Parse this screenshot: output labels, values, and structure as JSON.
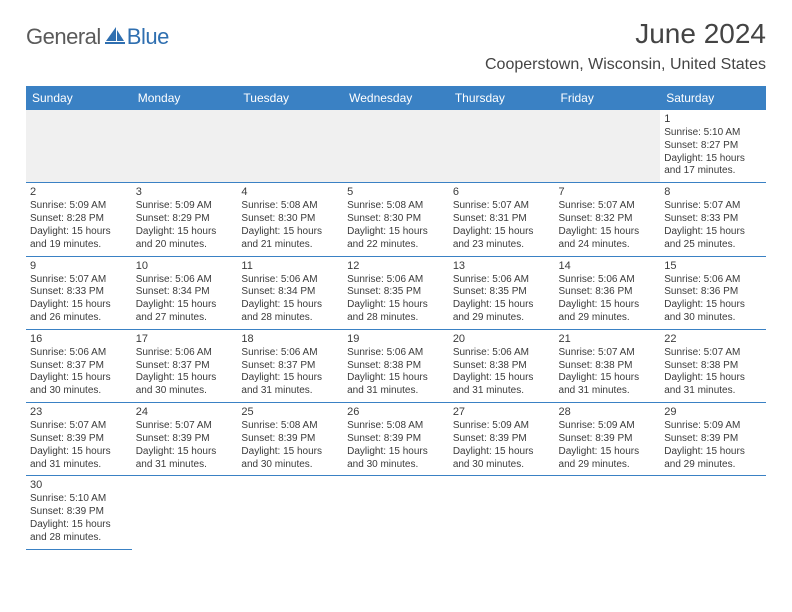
{
  "logo": {
    "text1": "General",
    "text2": "Blue",
    "sail_color": "#2f6fb0",
    "text1_color": "#5a5a5a"
  },
  "title": "June 2024",
  "location": "Cooperstown, Wisconsin, United States",
  "colors": {
    "header_bg": "#3a81c4",
    "header_fg": "#ffffff",
    "cell_border": "#3a81c4",
    "muted_bg": "#f0f0f0",
    "page_bg": "#ffffff",
    "text": "#3b3b3b"
  },
  "daynames": [
    "Sunday",
    "Monday",
    "Tuesday",
    "Wednesday",
    "Thursday",
    "Friday",
    "Saturday"
  ],
  "weeks": [
    [
      null,
      null,
      null,
      null,
      null,
      null,
      {
        "n": "1",
        "sr": "5:10 AM",
        "ss": "8:27 PM",
        "dl": "15 hours and 17 minutes."
      }
    ],
    [
      {
        "n": "2",
        "sr": "5:09 AM",
        "ss": "8:28 PM",
        "dl": "15 hours and 19 minutes."
      },
      {
        "n": "3",
        "sr": "5:09 AM",
        "ss": "8:29 PM",
        "dl": "15 hours and 20 minutes."
      },
      {
        "n": "4",
        "sr": "5:08 AM",
        "ss": "8:30 PM",
        "dl": "15 hours and 21 minutes."
      },
      {
        "n": "5",
        "sr": "5:08 AM",
        "ss": "8:30 PM",
        "dl": "15 hours and 22 minutes."
      },
      {
        "n": "6",
        "sr": "5:07 AM",
        "ss": "8:31 PM",
        "dl": "15 hours and 23 minutes."
      },
      {
        "n": "7",
        "sr": "5:07 AM",
        "ss": "8:32 PM",
        "dl": "15 hours and 24 minutes."
      },
      {
        "n": "8",
        "sr": "5:07 AM",
        "ss": "8:33 PM",
        "dl": "15 hours and 25 minutes."
      }
    ],
    [
      {
        "n": "9",
        "sr": "5:07 AM",
        "ss": "8:33 PM",
        "dl": "15 hours and 26 minutes."
      },
      {
        "n": "10",
        "sr": "5:06 AM",
        "ss": "8:34 PM",
        "dl": "15 hours and 27 minutes."
      },
      {
        "n": "11",
        "sr": "5:06 AM",
        "ss": "8:34 PM",
        "dl": "15 hours and 28 minutes."
      },
      {
        "n": "12",
        "sr": "5:06 AM",
        "ss": "8:35 PM",
        "dl": "15 hours and 28 minutes."
      },
      {
        "n": "13",
        "sr": "5:06 AM",
        "ss": "8:35 PM",
        "dl": "15 hours and 29 minutes."
      },
      {
        "n": "14",
        "sr": "5:06 AM",
        "ss": "8:36 PM",
        "dl": "15 hours and 29 minutes."
      },
      {
        "n": "15",
        "sr": "5:06 AM",
        "ss": "8:36 PM",
        "dl": "15 hours and 30 minutes."
      }
    ],
    [
      {
        "n": "16",
        "sr": "5:06 AM",
        "ss": "8:37 PM",
        "dl": "15 hours and 30 minutes."
      },
      {
        "n": "17",
        "sr": "5:06 AM",
        "ss": "8:37 PM",
        "dl": "15 hours and 30 minutes."
      },
      {
        "n": "18",
        "sr": "5:06 AM",
        "ss": "8:37 PM",
        "dl": "15 hours and 31 minutes."
      },
      {
        "n": "19",
        "sr": "5:06 AM",
        "ss": "8:38 PM",
        "dl": "15 hours and 31 minutes."
      },
      {
        "n": "20",
        "sr": "5:06 AM",
        "ss": "8:38 PM",
        "dl": "15 hours and 31 minutes."
      },
      {
        "n": "21",
        "sr": "5:07 AM",
        "ss": "8:38 PM",
        "dl": "15 hours and 31 minutes."
      },
      {
        "n": "22",
        "sr": "5:07 AM",
        "ss": "8:38 PM",
        "dl": "15 hours and 31 minutes."
      }
    ],
    [
      {
        "n": "23",
        "sr": "5:07 AM",
        "ss": "8:39 PM",
        "dl": "15 hours and 31 minutes."
      },
      {
        "n": "24",
        "sr": "5:07 AM",
        "ss": "8:39 PM",
        "dl": "15 hours and 31 minutes."
      },
      {
        "n": "25",
        "sr": "5:08 AM",
        "ss": "8:39 PM",
        "dl": "15 hours and 30 minutes."
      },
      {
        "n": "26",
        "sr": "5:08 AM",
        "ss": "8:39 PM",
        "dl": "15 hours and 30 minutes."
      },
      {
        "n": "27",
        "sr": "5:09 AM",
        "ss": "8:39 PM",
        "dl": "15 hours and 30 minutes."
      },
      {
        "n": "28",
        "sr": "5:09 AM",
        "ss": "8:39 PM",
        "dl": "15 hours and 29 minutes."
      },
      {
        "n": "29",
        "sr": "5:09 AM",
        "ss": "8:39 PM",
        "dl": "15 hours and 29 minutes."
      }
    ],
    [
      {
        "n": "30",
        "sr": "5:10 AM",
        "ss": "8:39 PM",
        "dl": "15 hours and 28 minutes."
      },
      null,
      null,
      null,
      null,
      null,
      null
    ]
  ],
  "labels": {
    "sunrise": "Sunrise:",
    "sunset": "Sunset:",
    "daylight": "Daylight:"
  }
}
